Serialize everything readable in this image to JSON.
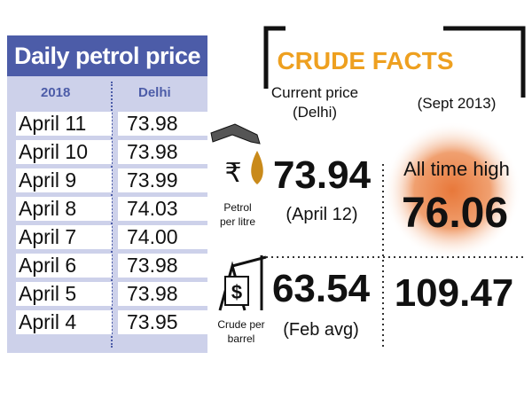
{
  "table": {
    "title": "Daily petrol price",
    "columns": [
      "2018",
      "Delhi"
    ],
    "rows": [
      [
        "April 11",
        "73.98"
      ],
      [
        "April 10",
        "73.98"
      ],
      [
        "April 9",
        "73.99"
      ],
      [
        "April 8",
        "74.03"
      ],
      [
        "April 7",
        "74.00"
      ],
      [
        "April 6",
        "73.98"
      ],
      [
        "April 5",
        "73.98"
      ],
      [
        "April 4",
        "73.95"
      ]
    ]
  },
  "facts": {
    "title": "CRUDE FACTS",
    "current_heading": "Current price",
    "current_sub": "(Delhi)",
    "history_heading": "(Sept 2013)",
    "rupee": "₹",
    "petrol_label": [
      "Petrol",
      "per litre"
    ],
    "petrol_price": "73.94",
    "petrol_date": "(April 12)",
    "high_label": "All time high",
    "high_value": "76.06",
    "crude_label": [
      "Crude per",
      "barrel"
    ],
    "crude_price": "63.54",
    "crude_date": "(Feb avg)",
    "crude_high": "109.47"
  }
}
